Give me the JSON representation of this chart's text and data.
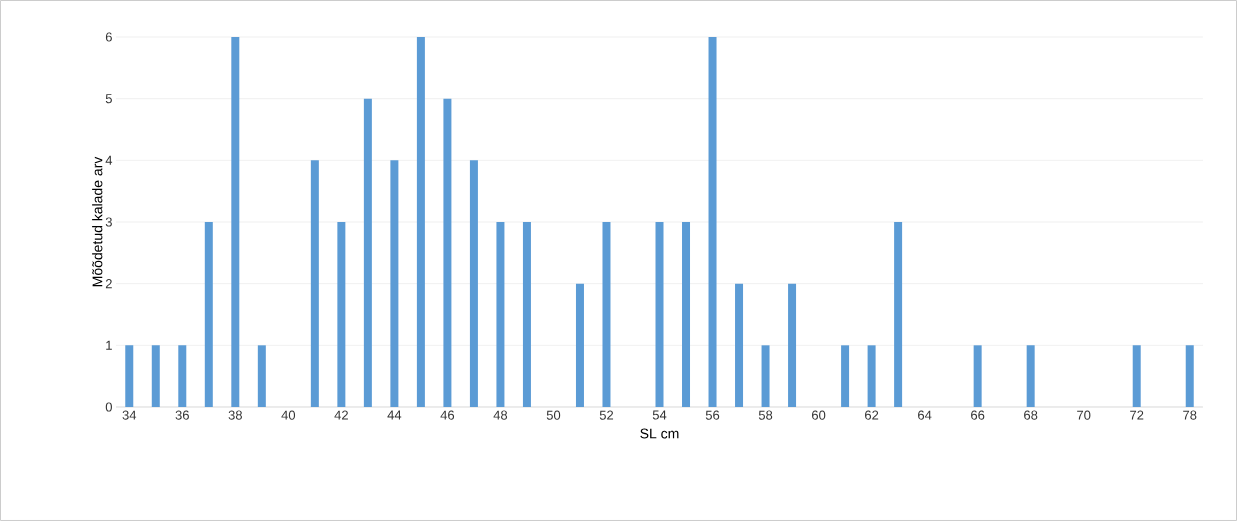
{
  "chart_data": {
    "type": "bar",
    "xlabel": "SL cm",
    "ylabel": "Mõõdetud kalade arv",
    "categories": [
      "34",
      null,
      "36",
      null,
      "38",
      null,
      "40",
      null,
      "42",
      null,
      "44",
      null,
      "46",
      null,
      "48",
      null,
      "50",
      null,
      "52",
      null,
      "54",
      null,
      "56",
      null,
      "58",
      null,
      "60",
      null,
      "62",
      null,
      "64",
      null,
      "66",
      null,
      "68",
      null,
      "70",
      null,
      "72",
      null,
      "78"
    ],
    "values": [
      1,
      1,
      1,
      3,
      6,
      1,
      0,
      4,
      3,
      5,
      4,
      6,
      5,
      4,
      3,
      3,
      0,
      2,
      3,
      0,
      3,
      3,
      6,
      2,
      1,
      2,
      0,
      1,
      1,
      3,
      0,
      0,
      1,
      0,
      1,
      0,
      0,
      0,
      1,
      0,
      1
    ],
    "color": "#5b9bd5",
    "ylim": [
      0,
      6
    ],
    "yticks": [
      0,
      1,
      2,
      3,
      4,
      5,
      6
    ],
    "grid": "y"
  }
}
